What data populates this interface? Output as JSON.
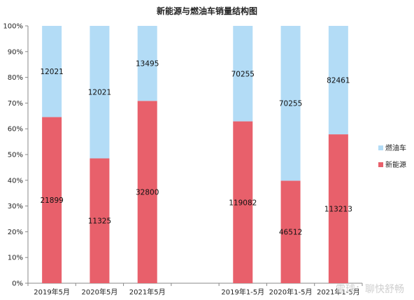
{
  "chart_data": {
    "type": "bar",
    "stacked": "percent",
    "title": "新能源与燃油车销量结构图",
    "categories": [
      "2019年5月",
      "2020年5月",
      "2021年5月",
      "",
      "2019年1-5月",
      "2020年1-5月",
      "2021年1-5月"
    ],
    "series": [
      {
        "name": "新能源",
        "color": "#e8606b",
        "values": [
          21899,
          11325,
          32800,
          null,
          119082,
          46512,
          113213
        ]
      },
      {
        "name": "燃油车",
        "color": "#b3dcf6",
        "values": [
          12021,
          12021,
          13495,
          null,
          70255,
          70255,
          82461
        ]
      }
    ],
    "ylim": [
      0,
      100
    ],
    "yticks": [
      "0%",
      "10%",
      "20%",
      "30%",
      "40%",
      "50%",
      "60%",
      "70%",
      "80%",
      "90%",
      "100%"
    ],
    "legend": "right",
    "grid": false
  },
  "watermark": "雪球：聊快舒畅"
}
